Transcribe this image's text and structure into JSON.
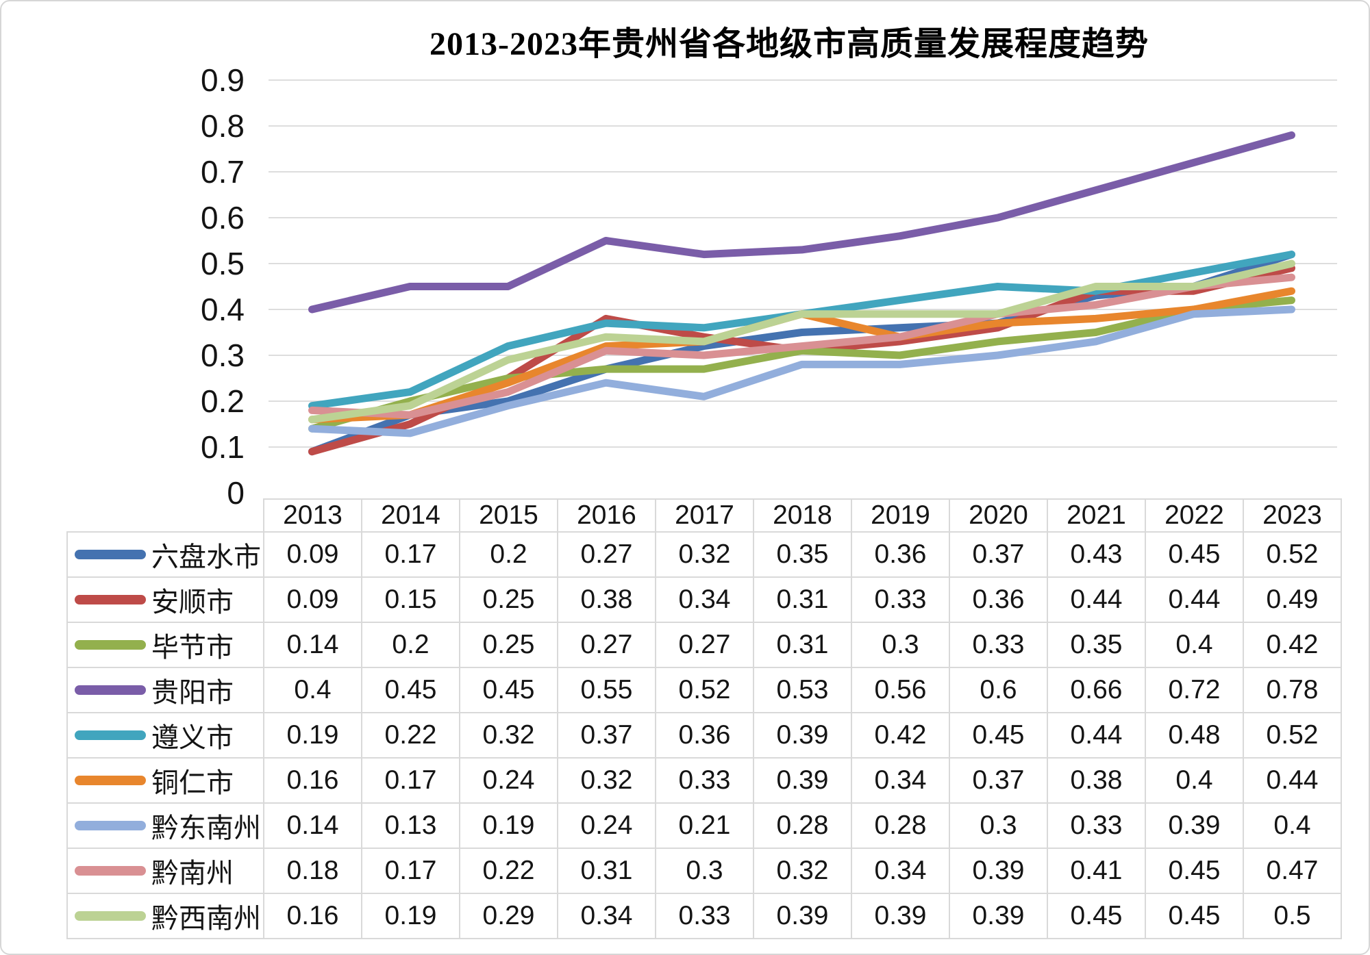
{
  "title": "2013-2023年贵州省各地级市高质量发展程度趋势",
  "colors": {
    "gridline": "#DDDDDD",
    "table_border": "#D9D9D9",
    "text": "#141414",
    "series_blue": "#4472B0",
    "series_red": "#BE4B48",
    "series_olive": "#93B04D",
    "series_purple": "#7A5DA8",
    "series_teal": "#41A5BE",
    "series_orange": "#E8862D",
    "series_lightblue": "#92AEDC",
    "series_pink": "#D99093",
    "series_lightgreen": "#BCD294"
  },
  "chart_data": {
    "type": "line",
    "title": "2013-2023年贵州省各地级市高质量发展程度趋势",
    "xlabel": "",
    "ylabel": "",
    "ylim": [
      0,
      0.9
    ],
    "yticks": [
      "0",
      "0.1",
      "0.2",
      "0.3",
      "0.4",
      "0.5",
      "0.6",
      "0.7",
      "0.8",
      "0.9"
    ],
    "grid": true,
    "legend_position": "table-rows-left",
    "categories": [
      "2013",
      "2014",
      "2015",
      "2016",
      "2017",
      "2018",
      "2019",
      "2020",
      "2021",
      "2022",
      "2023"
    ],
    "series": [
      {
        "name": "六盘水市",
        "color": "#4472B0",
        "values": [
          0.09,
          0.17,
          0.2,
          0.27,
          0.32,
          0.35,
          0.36,
          0.37,
          0.43,
          0.45,
          0.52
        ]
      },
      {
        "name": "安顺市",
        "color": "#BE4B48",
        "values": [
          0.09,
          0.15,
          0.25,
          0.38,
          0.34,
          0.31,
          0.33,
          0.36,
          0.44,
          0.44,
          0.49
        ]
      },
      {
        "name": "毕节市",
        "color": "#93B04D",
        "values": [
          0.14,
          0.2,
          0.25,
          0.27,
          0.27,
          0.31,
          0.3,
          0.33,
          0.35,
          0.4,
          0.42
        ]
      },
      {
        "name": "贵阳市",
        "color": "#7A5DA8",
        "values": [
          0.4,
          0.45,
          0.45,
          0.55,
          0.52,
          0.53,
          0.56,
          0.6,
          0.66,
          0.72,
          0.78
        ]
      },
      {
        "name": "遵义市",
        "color": "#41A5BE",
        "values": [
          0.19,
          0.22,
          0.32,
          0.37,
          0.36,
          0.39,
          0.42,
          0.45,
          0.44,
          0.48,
          0.52
        ]
      },
      {
        "name": "铜仁市",
        "color": "#E8862D",
        "values": [
          0.16,
          0.17,
          0.24,
          0.32,
          0.33,
          0.39,
          0.34,
          0.37,
          0.38,
          0.4,
          0.44
        ]
      },
      {
        "name": "黔东南州",
        "color": "#92AEDC",
        "values": [
          0.14,
          0.13,
          0.19,
          0.24,
          0.21,
          0.28,
          0.28,
          0.3,
          0.33,
          0.39,
          0.4
        ]
      },
      {
        "name": "黔南州",
        "color": "#D99093",
        "values": [
          0.18,
          0.17,
          0.22,
          0.31,
          0.3,
          0.32,
          0.34,
          0.39,
          0.41,
          0.45,
          0.47
        ]
      },
      {
        "name": "黔西南州",
        "color": "#BCD294",
        "values": [
          0.16,
          0.19,
          0.29,
          0.34,
          0.33,
          0.39,
          0.39,
          0.39,
          0.45,
          0.45,
          0.5
        ]
      }
    ]
  }
}
